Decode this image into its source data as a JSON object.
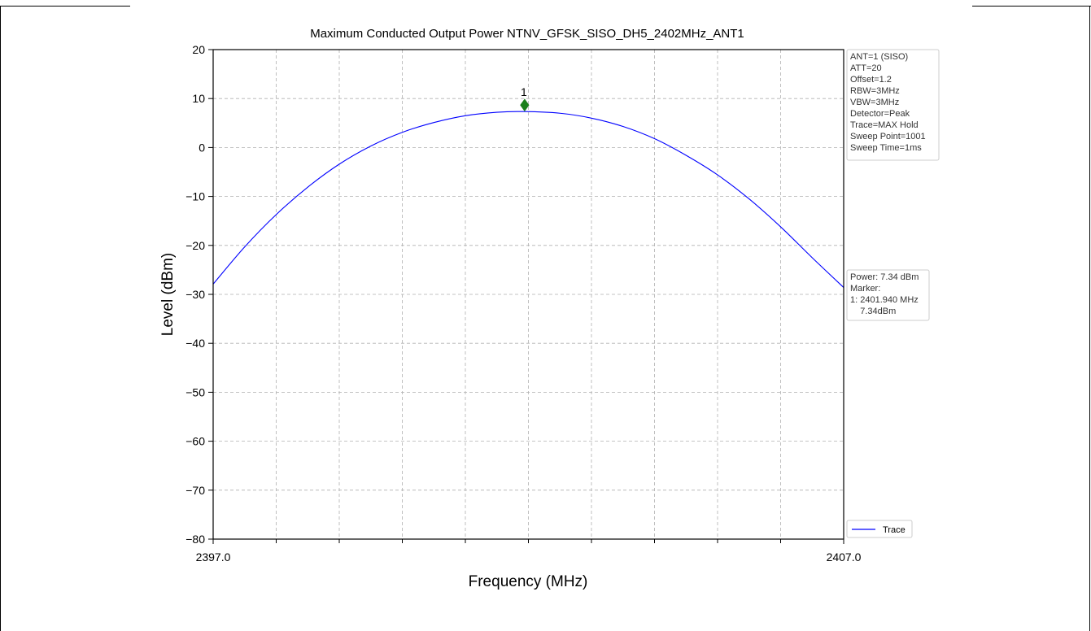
{
  "chart_data": {
    "type": "line",
    "title": "Maximum Conducted Output Power NTNV_GFSK_SISO_DH5_2402MHz_ANT1",
    "xlabel": "Frequency (MHz)",
    "ylabel": "Level (dBm)",
    "xlim": [
      2397.0,
      2407.0
    ],
    "ylim": [
      -80,
      20
    ],
    "x_tick_labels": [
      "2397.0",
      "2407.0"
    ],
    "x_minor_ticks": [
      2398,
      2399,
      2400,
      2401,
      2402,
      2403,
      2404,
      2405,
      2406
    ],
    "y_ticks": [
      20,
      10,
      0,
      -10,
      -20,
      -30,
      -40,
      -50,
      -60,
      -70,
      -80
    ],
    "y_tick_labels": [
      "20",
      "10",
      "0",
      "−10",
      "−20",
      "−30",
      "−40",
      "−50",
      "−60",
      "−70",
      "−80"
    ],
    "grid": true,
    "series": [
      {
        "name": "Trace",
        "color": "#0000ff",
        "x": [
          2397.0,
          2397.5,
          2398.0,
          2398.5,
          2399.0,
          2399.5,
          2400.0,
          2400.5,
          2401.0,
          2401.5,
          2401.94,
          2402.5,
          2403.0,
          2403.5,
          2404.0,
          2404.5,
          2405.0,
          2405.5,
          2406.0,
          2406.5,
          2407.0
        ],
        "y": [
          -27.9,
          -20.3,
          -13.7,
          -8.1,
          -3.4,
          0.3,
          3.1,
          5.1,
          6.5,
          7.2,
          7.34,
          7.0,
          6.0,
          4.3,
          1.8,
          -1.6,
          -5.6,
          -10.5,
          -16.2,
          -22.5,
          -28.6
        ]
      }
    ],
    "marker": {
      "label": "1",
      "x": 2401.94,
      "y": 7.34,
      "color": "#1a7f1a"
    },
    "legend": {
      "placement": "bottom-right",
      "entries": [
        "Trace"
      ]
    },
    "annotations": {
      "settings_box": [
        "ANT=1 (SISO)",
        "ATT=20",
        "Offset=1.2",
        "RBW=3MHz",
        "VBW=3MHz",
        "Detector=Peak",
        "Trace=MAX Hold",
        "Sweep Point=1001",
        "Sweep Time=1ms"
      ],
      "result_box": [
        "Power: 7.34 dBm",
        "Marker:",
        "1: 2401.940 MHz",
        "    7.34dBm"
      ]
    }
  }
}
